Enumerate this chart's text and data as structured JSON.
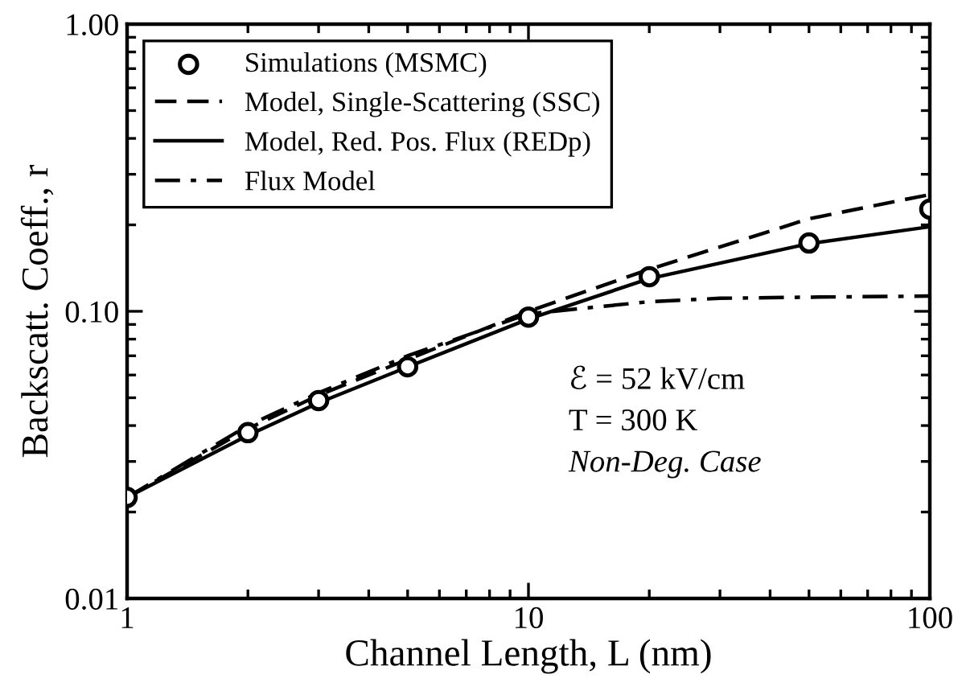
{
  "chart_data": {
    "type": "line",
    "xlabel": "Channel Length, L (nm)",
    "ylabel": "Backscatt. Coeff., r",
    "log": "xy",
    "xlim": [
      1,
      100
    ],
    "ylim": [
      0.01,
      1
    ],
    "xticks": [
      1,
      10,
      100
    ],
    "yticks": [
      {
        "value": 0.01,
        "label": "0.01"
      },
      {
        "value": 0.1,
        "label": "0.10"
      },
      {
        "value": 1,
        "label": "1.00"
      }
    ],
    "grid": false,
    "legend": "top left",
    "series": [
      {
        "name": "Simulations (MSMC)",
        "type": "scatter",
        "marker": "circle",
        "color": "#000000",
        "x": [
          1,
          2,
          3,
          5,
          10,
          20,
          50,
          100
        ],
        "values": [
          0.0225,
          0.0378,
          0.0489,
          0.0641,
          0.0955,
          0.132,
          0.173,
          0.227
        ]
      },
      {
        "name": "Model, Single-Scattering (SSC)",
        "line_style": "dashed",
        "color": "#000000",
        "x": [
          1,
          2,
          3,
          5,
          10,
          20,
          50,
          100
        ],
        "values": [
          0.0225,
          0.039,
          0.051,
          0.068,
          0.1,
          0.14,
          0.21,
          0.255
        ]
      },
      {
        "name": "Model, Red. Pos. Flux (REDp)",
        "line_style": "solid",
        "color": "#000000",
        "x": [
          1,
          2,
          3,
          5,
          10,
          20,
          50,
          100
        ],
        "values": [
          0.0225,
          0.037,
          0.048,
          0.064,
          0.094,
          0.13,
          0.172,
          0.197
        ]
      },
      {
        "name": "Flux Model",
        "line_style": "dashdot",
        "color": "#000000",
        "x": [
          1,
          2,
          3,
          5,
          10,
          20,
          30,
          50,
          100
        ],
        "values": [
          0.0225,
          0.04,
          0.052,
          0.07,
          0.098,
          0.108,
          0.111,
          0.112,
          0.113
        ]
      }
    ],
    "annotations": [
      "ℰ = 52 kV/cm",
      "T = 300 K",
      "Non-Deg. Case"
    ]
  }
}
